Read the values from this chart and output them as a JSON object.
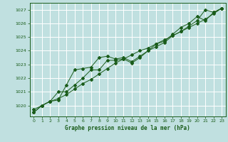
{
  "background_color": "#c0e0e0",
  "grid_color": "#ffffff",
  "line_color": "#1a5c1a",
  "title": "Graphe pression niveau de la mer (hPa)",
  "xlim": [
    -0.5,
    23.5
  ],
  "ylim": [
    1019.2,
    1027.5
  ],
  "yticks": [
    1020,
    1021,
    1022,
    1023,
    1024,
    1025,
    1026,
    1027
  ],
  "xticks": [
    0,
    1,
    2,
    3,
    4,
    5,
    6,
    7,
    8,
    9,
    10,
    11,
    12,
    13,
    14,
    15,
    16,
    17,
    18,
    19,
    20,
    21,
    22,
    23
  ],
  "line1_x": [
    0,
    1,
    2,
    3,
    4,
    5,
    6,
    7,
    8,
    9,
    10,
    11,
    12,
    13,
    14,
    15,
    16,
    17,
    18,
    19,
    20,
    21,
    22,
    23
  ],
  "line1_y": [
    1019.7,
    1020.0,
    1020.3,
    1020.5,
    1020.8,
    1021.2,
    1021.6,
    1021.9,
    1022.3,
    1022.7,
    1023.1,
    1023.4,
    1023.7,
    1024.0,
    1024.2,
    1024.5,
    1024.8,
    1025.1,
    1025.4,
    1025.7,
    1026.0,
    1026.3,
    1026.7,
    1027.1
  ],
  "line2_x": [
    0,
    1,
    2,
    3,
    4,
    5,
    6,
    7,
    8,
    9,
    10,
    11,
    12,
    13,
    14,
    15,
    16,
    17,
    18,
    19,
    20,
    21,
    22,
    23
  ],
  "line2_y": [
    1019.5,
    1020.0,
    1020.3,
    1021.0,
    1021.0,
    1021.5,
    1022.0,
    1022.6,
    1022.6,
    1023.3,
    1023.3,
    1023.4,
    1023.1,
    1023.5,
    1024.0,
    1024.3,
    1024.6,
    1025.1,
    1025.4,
    1025.8,
    1026.2,
    1027.0,
    1026.8,
    1027.1
  ],
  "line3_x": [
    0,
    1,
    2,
    3,
    4,
    5,
    6,
    7,
    8,
    9,
    10,
    11,
    12,
    13,
    14,
    15,
    16,
    17,
    18,
    19,
    20,
    21,
    22,
    23
  ],
  "line3_y": [
    1019.5,
    1020.0,
    1020.3,
    1020.4,
    1021.5,
    1022.6,
    1022.7,
    1022.8,
    1023.5,
    1023.6,
    1023.4,
    1023.5,
    1023.2,
    1023.6,
    1024.0,
    1024.5,
    1024.7,
    1025.2,
    1025.7,
    1026.0,
    1026.5,
    1026.2,
    1026.8,
    1027.1
  ],
  "figsize": [
    3.2,
    2.0
  ],
  "dpi": 100
}
